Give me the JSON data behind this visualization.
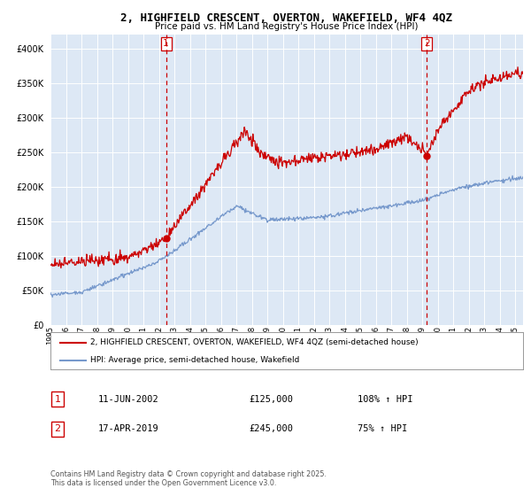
{
  "title": "2, HIGHFIELD CRESCENT, OVERTON, WAKEFIELD, WF4 4QZ",
  "subtitle": "Price paid vs. HM Land Registry's House Price Index (HPI)",
  "red_label": "2, HIGHFIELD CRESCENT, OVERTON, WAKEFIELD, WF4 4QZ (semi-detached house)",
  "blue_label": "HPI: Average price, semi-detached house, Wakefield",
  "sale1_date": "11-JUN-2002",
  "sale1_price": 125000,
  "sale1_hpi": "108% ↑ HPI",
  "sale2_date": "17-APR-2019",
  "sale2_price": 245000,
  "sale2_hpi": "75% ↑ HPI",
  "footnote": "Contains HM Land Registry data © Crown copyright and database right 2025.\nThis data is licensed under the Open Government Licence v3.0.",
  "ylim": [
    0,
    420000
  ],
  "yticks": [
    0,
    50000,
    100000,
    150000,
    200000,
    250000,
    300000,
    350000,
    400000
  ],
  "red_color": "#cc0000",
  "blue_color": "#7799cc",
  "vline_color": "#cc0000",
  "plot_bg_color": "#dde8f5",
  "background_color": "#ffffff",
  "grid_color": "#ffffff",
  "sale1_t": 2002.46,
  "sale2_t": 2019.29
}
